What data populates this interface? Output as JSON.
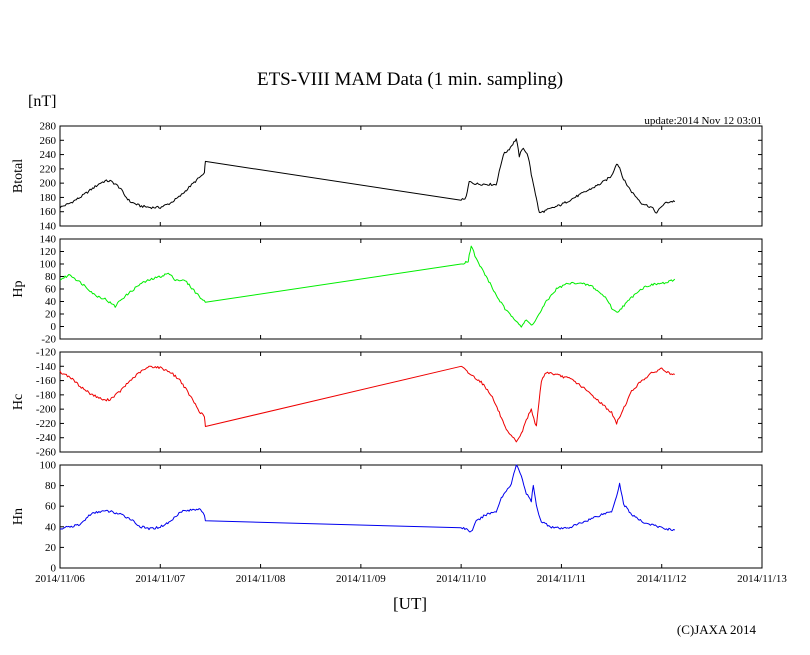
{
  "chart_data": {
    "type": "line",
    "title": "ETS-VIII MAM Data (1 min. sampling)",
    "unit_label": "[nT]",
    "update_text": "update:2014 Nov 12 03:01",
    "xlabel": "[UT]",
    "copyright": "(C)JAXA 2014",
    "x_ticks": [
      "2014/11/06",
      "2014/11/07",
      "2014/11/08",
      "2014/11/09",
      "2014/11/10",
      "2014/11/11",
      "2014/11/12",
      "2014/11/13"
    ],
    "xlim_days": [
      0,
      7
    ],
    "data_gap_days": [
      1.47,
      4.0
    ],
    "panels": [
      {
        "name": "Btotal",
        "color": "#000000",
        "ylim": [
          140,
          280
        ],
        "yticks": [
          "280",
          "260",
          "240",
          "220",
          "200",
          "180",
          "160",
          "140"
        ],
        "points": [
          [
            0.0,
            166
          ],
          [
            0.1,
            172
          ],
          [
            0.2,
            180
          ],
          [
            0.3,
            190
          ],
          [
            0.4,
            200
          ],
          [
            0.45,
            203
          ],
          [
            0.5,
            203
          ],
          [
            0.55,
            199
          ],
          [
            0.6,
            193
          ],
          [
            0.65,
            182
          ],
          [
            0.7,
            174
          ],
          [
            0.8,
            168
          ],
          [
            0.9,
            166
          ],
          [
            1.0,
            166
          ],
          [
            1.1,
            172
          ],
          [
            1.2,
            182
          ],
          [
            1.3,
            196
          ],
          [
            1.4,
            209
          ],
          [
            1.44,
            213
          ],
          [
            1.45,
            232
          ],
          [
            4.0,
            176
          ],
          [
            4.05,
            180
          ],
          [
            4.08,
            202
          ],
          [
            4.15,
            199
          ],
          [
            4.35,
            198
          ],
          [
            4.38,
            216
          ],
          [
            4.42,
            240
          ],
          [
            4.48,
            248
          ],
          [
            4.55,
            262
          ],
          [
            4.58,
            238
          ],
          [
            4.62,
            250
          ],
          [
            4.67,
            237
          ],
          [
            4.7,
            212
          ],
          [
            4.72,
            200
          ],
          [
            4.75,
            178
          ],
          [
            4.78,
            158
          ],
          [
            4.85,
            162
          ],
          [
            5.0,
            170
          ],
          [
            5.2,
            185
          ],
          [
            5.4,
            200
          ],
          [
            5.5,
            210
          ],
          [
            5.55,
            228
          ],
          [
            5.58,
            222
          ],
          [
            5.62,
            205
          ],
          [
            5.7,
            188
          ],
          [
            5.8,
            172
          ],
          [
            5.9,
            166
          ],
          [
            5.95,
            158
          ],
          [
            6.0,
            168
          ],
          [
            6.05,
            173
          ],
          [
            6.13,
            175
          ]
        ]
      },
      {
        "name": "Hp",
        "color": "#00ee00",
        "ylim": [
          -20,
          140
        ],
        "yticks": [
          "140",
          "120",
          "100",
          "80",
          "60",
          "40",
          "20",
          "0",
          "-20"
        ],
        "points": [
          [
            0.0,
            75
          ],
          [
            0.1,
            83
          ],
          [
            0.18,
            73
          ],
          [
            0.25,
            65
          ],
          [
            0.35,
            50
          ],
          [
            0.45,
            44
          ],
          [
            0.5,
            38
          ],
          [
            0.55,
            32
          ],
          [
            0.6,
            42
          ],
          [
            0.7,
            55
          ],
          [
            0.8,
            68
          ],
          [
            0.9,
            75
          ],
          [
            1.0,
            80
          ],
          [
            1.08,
            85
          ],
          [
            1.15,
            75
          ],
          [
            1.25,
            73
          ],
          [
            1.35,
            55
          ],
          [
            1.45,
            38
          ],
          [
            4.0,
            100
          ],
          [
            4.07,
            105
          ],
          [
            4.1,
            130
          ],
          [
            4.15,
            108
          ],
          [
            4.25,
            80
          ],
          [
            4.35,
            50
          ],
          [
            4.45,
            25
          ],
          [
            4.55,
            10
          ],
          [
            4.6,
            0
          ],
          [
            4.65,
            10
          ],
          [
            4.7,
            2
          ],
          [
            4.75,
            12
          ],
          [
            4.85,
            40
          ],
          [
            4.95,
            60
          ],
          [
            5.05,
            68
          ],
          [
            5.15,
            70
          ],
          [
            5.3,
            65
          ],
          [
            5.45,
            45
          ],
          [
            5.5,
            30
          ],
          [
            5.55,
            22
          ],
          [
            5.65,
            38
          ],
          [
            5.75,
            55
          ],
          [
            5.85,
            65
          ],
          [
            5.95,
            68
          ],
          [
            6.05,
            70
          ],
          [
            6.13,
            75
          ]
        ]
      },
      {
        "name": "Hc",
        "color": "#ee0000",
        "ylim": [
          -260,
          -120
        ],
        "yticks": [
          "-120",
          "-140",
          "-160",
          "-180",
          "-200",
          "-220",
          "-240",
          "-260"
        ],
        "points": [
          [
            0.0,
            -148
          ],
          [
            0.1,
            -155
          ],
          [
            0.2,
            -168
          ],
          [
            0.3,
            -178
          ],
          [
            0.4,
            -185
          ],
          [
            0.45,
            -188
          ],
          [
            0.5,
            -186
          ],
          [
            0.6,
            -175
          ],
          [
            0.7,
            -160
          ],
          [
            0.8,
            -148
          ],
          [
            0.9,
            -140
          ],
          [
            1.0,
            -142
          ],
          [
            1.1,
            -148
          ],
          [
            1.2,
            -160
          ],
          [
            1.3,
            -182
          ],
          [
            1.4,
            -205
          ],
          [
            1.44,
            -210
          ],
          [
            1.45,
            -225
          ],
          [
            4.0,
            -140
          ],
          [
            4.08,
            -150
          ],
          [
            4.2,
            -162
          ],
          [
            4.3,
            -180
          ],
          [
            4.38,
            -205
          ],
          [
            4.45,
            -230
          ],
          [
            4.5,
            -238
          ],
          [
            4.55,
            -245
          ],
          [
            4.6,
            -235
          ],
          [
            4.65,
            -215
          ],
          [
            4.7,
            -200
          ],
          [
            4.75,
            -225
          ],
          [
            4.8,
            -160
          ],
          [
            4.85,
            -148
          ],
          [
            4.95,
            -152
          ],
          [
            5.1,
            -158
          ],
          [
            5.2,
            -168
          ],
          [
            5.3,
            -180
          ],
          [
            5.4,
            -192
          ],
          [
            5.5,
            -205
          ],
          [
            5.55,
            -220
          ],
          [
            5.6,
            -205
          ],
          [
            5.7,
            -175
          ],
          [
            5.8,
            -160
          ],
          [
            5.9,
            -150
          ],
          [
            6.0,
            -143
          ],
          [
            6.05,
            -148
          ],
          [
            6.13,
            -153
          ]
        ]
      },
      {
        "name": "Hn",
        "color": "#0000ee",
        "ylim": [
          0,
          100
        ],
        "yticks": [
          "100",
          "80",
          "60",
          "40",
          "20",
          "0"
        ],
        "points": [
          [
            0.0,
            38
          ],
          [
            0.1,
            40
          ],
          [
            0.2,
            42
          ],
          [
            0.3,
            52
          ],
          [
            0.4,
            55
          ],
          [
            0.5,
            55
          ],
          [
            0.6,
            52
          ],
          [
            0.7,
            48
          ],
          [
            0.8,
            40
          ],
          [
            0.9,
            38
          ],
          [
            1.0,
            40
          ],
          [
            1.1,
            45
          ],
          [
            1.2,
            55
          ],
          [
            1.3,
            56
          ],
          [
            1.4,
            58
          ],
          [
            1.44,
            50
          ],
          [
            1.45,
            46
          ],
          [
            4.0,
            39
          ],
          [
            4.05,
            38
          ],
          [
            4.1,
            35
          ],
          [
            4.15,
            45
          ],
          [
            4.25,
            52
          ],
          [
            4.35,
            55
          ],
          [
            4.4,
            68
          ],
          [
            4.45,
            75
          ],
          [
            4.5,
            82
          ],
          [
            4.55,
            100
          ],
          [
            4.6,
            90
          ],
          [
            4.65,
            72
          ],
          [
            4.7,
            65
          ],
          [
            4.72,
            80
          ],
          [
            4.75,
            60
          ],
          [
            4.8,
            45
          ],
          [
            4.9,
            40
          ],
          [
            5.0,
            38
          ],
          [
            5.1,
            40
          ],
          [
            5.2,
            44
          ],
          [
            5.3,
            48
          ],
          [
            5.4,
            52
          ],
          [
            5.5,
            55
          ],
          [
            5.55,
            70
          ],
          [
            5.58,
            82
          ],
          [
            5.62,
            62
          ],
          [
            5.7,
            52
          ],
          [
            5.8,
            45
          ],
          [
            5.9,
            42
          ],
          [
            6.0,
            39
          ],
          [
            6.05,
            38
          ],
          [
            6.13,
            37
          ]
        ]
      }
    ]
  }
}
